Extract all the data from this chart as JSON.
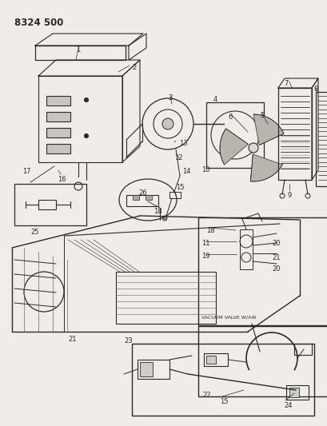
{
  "title": "8324 500",
  "bg_color": "#f0ede8",
  "line_color": "#2a2a2a",
  "title_fontsize": 8.5,
  "label_fontsize": 6.0
}
